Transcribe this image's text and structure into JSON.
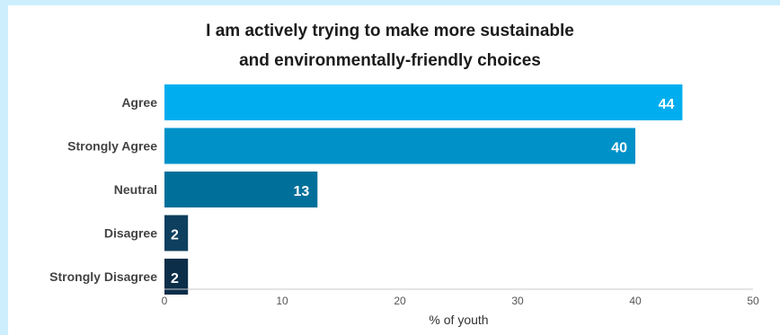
{
  "chart_data": {
    "type": "bar",
    "orientation": "horizontal",
    "title_lines": [
      "I am actively trying to make more sustainable",
      "and environmentally-friendly choices"
    ],
    "categories": [
      "Agree",
      "Strongly Agree",
      "Neutral",
      "Disagree",
      "Strongly Disagree"
    ],
    "values": [
      44,
      40,
      13,
      2,
      2
    ],
    "value_labels": [
      "44",
      "40",
      "13",
      "2",
      "2"
    ],
    "xlabel": "% of youth",
    "ylabel": "",
    "xlim": [
      0,
      50
    ],
    "xticks": [
      0,
      10,
      20,
      30,
      40,
      50
    ],
    "xtick_labels": [
      "0",
      "10",
      "20",
      "30",
      "40",
      "50"
    ],
    "colors": [
      "#00aeef",
      "#0091c9",
      "#00709a",
      "#0e3f5e",
      "#0c2e49"
    ],
    "grid": false,
    "legend": "none"
  }
}
